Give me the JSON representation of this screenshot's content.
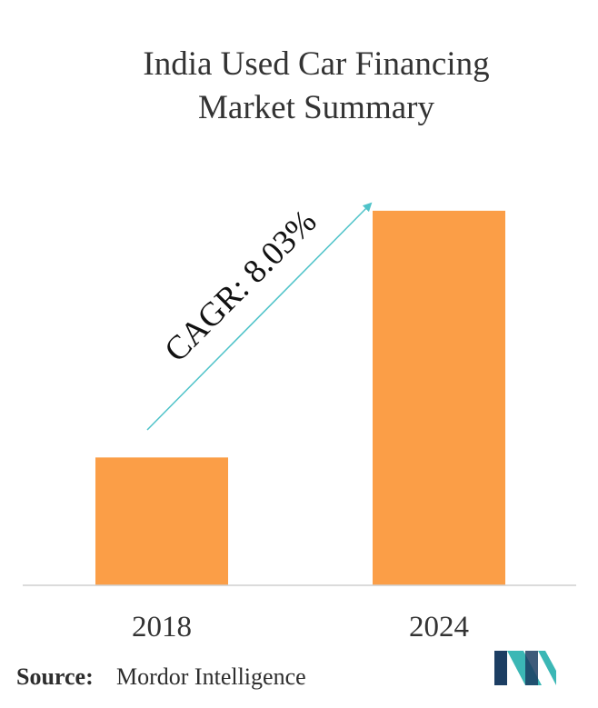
{
  "chart_data": {
    "type": "bar",
    "title_lines": [
      "India Used Car Financing",
      "Market Summary"
    ],
    "categories": [
      "2018",
      "2024"
    ],
    "values": [
      1,
      2.93
    ],
    "ylim": [
      0,
      3.05
    ],
    "grid": false,
    "bar_color": "#fb9e47",
    "annotation": {
      "text": "CAGR: 8.03%",
      "arrow_color": "#4fc3c9"
    }
  },
  "source": {
    "label": "Source:",
    "value": "Mordor Intelligence"
  },
  "logo": {
    "icon": "mordor-intelligence-logo",
    "colors": [
      "#1c3e63",
      "#3bb7b5"
    ]
  }
}
